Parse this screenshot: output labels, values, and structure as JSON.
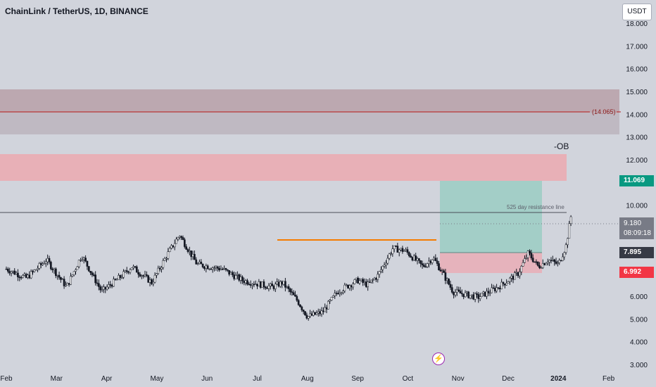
{
  "header": {
    "title": "ChainLink / TetherUS, 1D, BINANCE",
    "currency_button": "USDT"
  },
  "annotations": {
    "ob_label": "-OB",
    "resistance_label": "525 day resistance line",
    "level_label": "(14.065)"
  },
  "price_tags": {
    "target": "11.069",
    "current_price": "9.180",
    "countdown": "08:09:18",
    "entry": "7.895",
    "stop": "6.992"
  },
  "icons": {
    "event": "flash-icon"
  },
  "colors": {
    "background": "#d1d4dc",
    "up_candle": "#ffffff",
    "down_candle": "#131722",
    "orange_line": "#f57c00",
    "target_zone": "#a3cec7",
    "stop_zone": "#e6b3bc",
    "supply_zone": "#e8b0b7",
    "top_zone": "#b9a0a8"
  },
  "chart_data": {
    "type": "candlestick",
    "title": "ChainLink / TetherUS, 1D, BINANCE",
    "x_tick_labels": [
      "Feb",
      "Mar",
      "Apr",
      "May",
      "Jun",
      "Jul",
      "Aug",
      "Sep",
      "Oct",
      "Nov",
      "Dec",
      "2024",
      "Feb"
    ],
    "y_tick_labels": [
      "3.000",
      "4.000",
      "5.000",
      "6.000",
      "7.000",
      "8.000",
      "9.000",
      "10.000",
      "11.000",
      "12.000",
      "13.000",
      "14.000",
      "15.000",
      "16.000",
      "17.000",
      "18.000"
    ],
    "ylim": [
      2.85,
      18.1
    ],
    "x_months": [
      0,
      13.5
    ],
    "key_points": [
      [
        0.0,
        7.2
      ],
      [
        0.4,
        6.8
      ],
      [
        0.8,
        7.6
      ],
      [
        1.2,
        6.4
      ],
      [
        1.5,
        7.8
      ],
      [
        1.9,
        6.2
      ],
      [
        2.3,
        6.9
      ],
      [
        2.5,
        7.3
      ],
      [
        2.9,
        6.6
      ],
      [
        3.2,
        7.8
      ],
      [
        3.45,
        8.7
      ],
      [
        3.8,
        7.4
      ],
      [
        4.3,
        7.2
      ],
      [
        4.7,
        6.7
      ],
      [
        5.3,
        6.4
      ],
      [
        5.5,
        6.6
      ],
      [
        5.8,
        5.8
      ],
      [
        6.0,
        5.1
      ],
      [
        6.3,
        5.3
      ],
      [
        6.6,
        6.2
      ],
      [
        7.0,
        6.7
      ],
      [
        7.2,
        6.5
      ],
      [
        7.4,
        6.9
      ],
      [
        7.7,
        8.1
      ],
      [
        7.95,
        8.0
      ],
      [
        8.3,
        7.3
      ],
      [
        8.5,
        7.7
      ],
      [
        8.7,
        7.0
      ],
      [
        8.9,
        6.2
      ],
      [
        9.4,
        5.95
      ],
      [
        9.8,
        6.4
      ],
      [
        10.2,
        7.0
      ],
      [
        10.4,
        7.9
      ],
      [
        10.6,
        7.3
      ],
      [
        10.8,
        7.6
      ],
      [
        11.0,
        7.4
      ],
      [
        11.15,
        8.2
      ],
      [
        11.25,
        9.5
      ]
    ],
    "horizontal_levels": [
      {
        "name": "525 day resistance line",
        "value": 9.59
      },
      {
        "name": "(14.065)",
        "value": 14.065
      }
    ],
    "zones": [
      {
        "kind": "top-zone",
        "from": 13.08,
        "to": 15.05
      },
      {
        "kind": "-OB",
        "from": 11.05,
        "to": 12.25
      },
      {
        "kind": "target",
        "from": 7.895,
        "to": 11.069
      },
      {
        "kind": "stop",
        "from": 6.992,
        "to": 7.895
      }
    ],
    "orange_level": {
      "value": 8.05,
      "from_month": 7.75,
      "to_month": 11.2
    }
  }
}
